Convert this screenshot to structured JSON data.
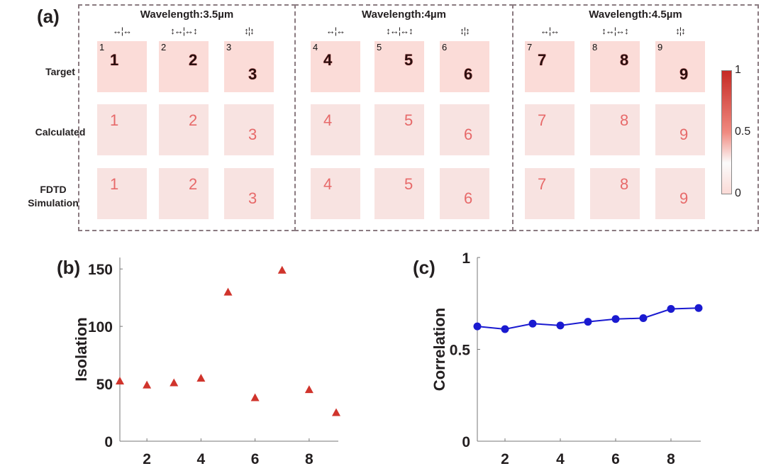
{
  "panel_a": {
    "label": "(a)",
    "groups": [
      {
        "title": "Wavelength:3.5µm",
        "pols": [
          "↔¦↔",
          "↕↔¦↔↕",
          "↕¦↕"
        ],
        "ids": [
          "1",
          "2",
          "3"
        ]
      },
      {
        "title": "Wavelength:4µm",
        "pols": [
          "↔¦↔",
          "↕↔¦↔↕",
          "↕¦↕"
        ],
        "ids": [
          "4",
          "5",
          "6"
        ]
      },
      {
        "title": "Wavelength:4.5µm",
        "pols": [
          "↔¦↔",
          "↕↔¦↔↕",
          "↕¦↕"
        ],
        "ids": [
          "7",
          "8",
          "9"
        ]
      }
    ],
    "rows": [
      "Target",
      "Calculated",
      "FDTD Simulation"
    ],
    "colorbar": {
      "max": "1",
      "mid": "0.5",
      "min": "0",
      "colors": [
        "#c62a25",
        "#fbdad6"
      ]
    }
  },
  "chart_data": [
    {
      "label": "(b)",
      "type": "scatter",
      "x": [
        1,
        2,
        3,
        4,
        5,
        6,
        7,
        8,
        9
      ],
      "y": [
        52.5,
        49,
        51,
        55,
        130,
        38,
        149,
        45,
        25
      ],
      "ylabel": "Isolation",
      "xlabel": "",
      "xlim": [
        1,
        9
      ],
      "ylim": [
        0,
        160
      ],
      "xticks": [
        "2",
        "4",
        "6",
        "8"
      ],
      "yticks": [
        "0",
        "50",
        "100",
        "150"
      ],
      "marker": "triangle",
      "color": "#d0342c"
    },
    {
      "label": "(c)",
      "type": "line",
      "x": [
        1,
        2,
        3,
        4,
        5,
        6,
        7,
        8,
        9
      ],
      "y": [
        0.625,
        0.61,
        0.64,
        0.63,
        0.65,
        0.665,
        0.67,
        0.72,
        0.725
      ],
      "ylabel": "Correlation",
      "xlabel": "",
      "xlim": [
        1,
        9
      ],
      "ylim": [
        0,
        1
      ],
      "xticks": [
        "2",
        "4",
        "6",
        "8"
      ],
      "yticks": [
        "0",
        "0.5",
        "1"
      ],
      "marker": "circle",
      "color": "#1a1ad0"
    }
  ]
}
